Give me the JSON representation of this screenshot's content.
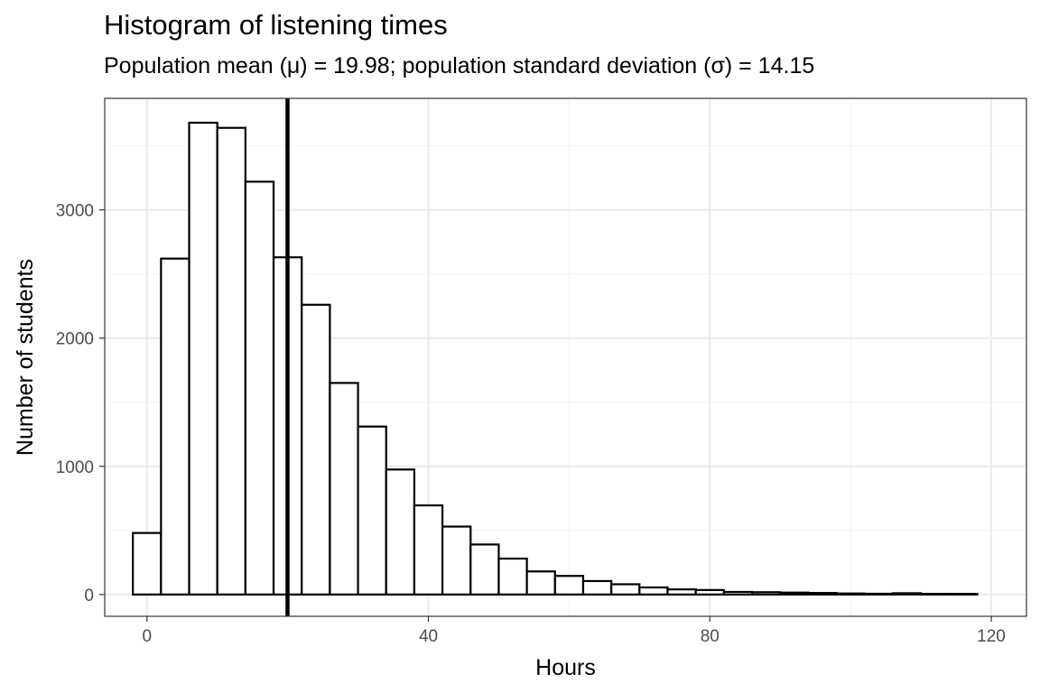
{
  "chart_data": {
    "type": "bar",
    "title": "Histogram of listening times",
    "subtitle": "Population mean (μ) = 19.98; population standard deviation (σ) = 14.15",
    "xlabel": "Hours",
    "ylabel": "Number of students",
    "xlim": [
      -6,
      125
    ],
    "ylim": [
      -170,
      3870
    ],
    "x_ticks": [
      0,
      40,
      80,
      120
    ],
    "x_tick_labels": [
      "0",
      "40",
      "80",
      "120"
    ],
    "y_ticks": [
      0,
      1000,
      2000,
      3000
    ],
    "y_tick_labels": [
      "0",
      "1000",
      "2000",
      "3000"
    ],
    "bin_width": 4,
    "bin_centers": [
      0,
      4,
      8,
      12,
      16,
      20,
      24,
      28,
      32,
      36,
      40,
      44,
      48,
      52,
      56,
      60,
      64,
      68,
      72,
      76,
      80,
      84,
      88,
      92,
      96,
      100,
      104,
      108,
      112,
      116
    ],
    "values": [
      480,
      2620,
      3680,
      3640,
      3220,
      2630,
      2260,
      1650,
      1310,
      975,
      695,
      530,
      390,
      280,
      180,
      145,
      105,
      80,
      55,
      40,
      35,
      20,
      18,
      15,
      12,
      8,
      6,
      10,
      5,
      5
    ],
    "mean_line": 19.98,
    "grid": true,
    "bar_fill": "#ffffff",
    "bar_stroke": "#000000",
    "grid_major_color": "#ebebeb",
    "grid_minor_color": "#f2f2f2"
  }
}
